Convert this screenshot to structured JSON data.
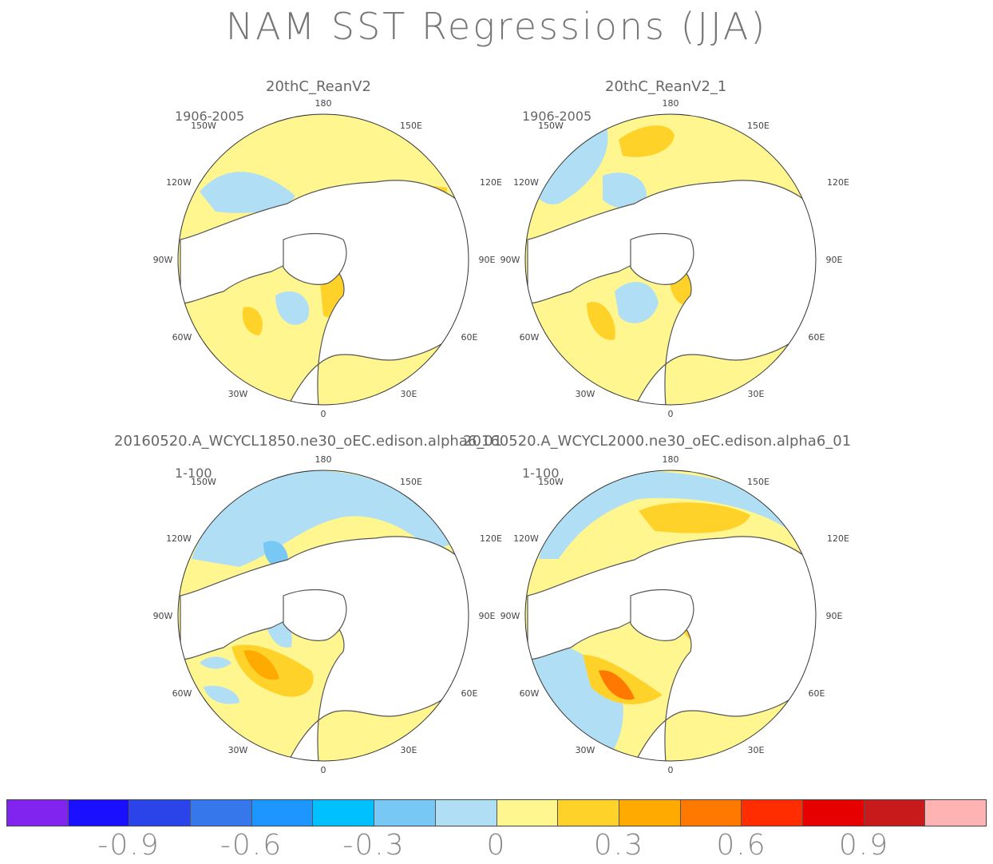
{
  "title": "NAM SST Regressions (JJA)",
  "panels": [
    {
      "name": "20thC_ReanV2",
      "period": "1906-2005"
    },
    {
      "name": "20thC_ReanV2_1",
      "period": "1906-2005"
    },
    {
      "name": "20160520.A_WCYCL1850.ne30_oEC.edison.alpha6_01",
      "period": "1-100"
    },
    {
      "name": "20160520.A_WCYCL2000.ne30_oEC.edison.alpha6_01",
      "period": "1-100"
    }
  ],
  "lon_labels": {
    "top": "180",
    "bottom": "0",
    "ul": "150W",
    "ur": "150E",
    "l1": "120W",
    "r1": "120E",
    "l2": "90W",
    "r2": "90E",
    "l3": "60W",
    "r3": "60E",
    "bl": "30W",
    "br": "30E"
  },
  "colorbar": {
    "colors": [
      "#8224f0",
      "#1a10ff",
      "#2a44ea",
      "#3678ec",
      "#1e96ff",
      "#00c0ff",
      "#78c8f5",
      "#b0dff5",
      "#fff690",
      "#ffd22a",
      "#ffaa00",
      "#ff7800",
      "#ff2d00",
      "#e60000",
      "#c81a1a",
      "#ffb3b3"
    ],
    "labels": [
      "-0.9",
      "-0.6",
      "-0.3",
      "0",
      "0.3",
      "0.6",
      "0.9"
    ]
  }
}
